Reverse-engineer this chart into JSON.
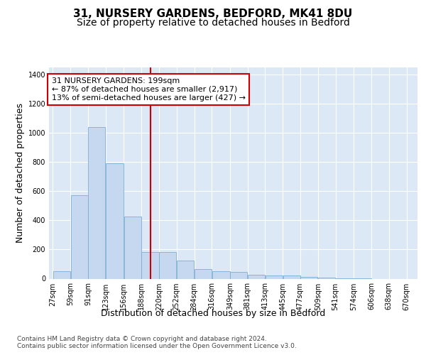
{
  "title_line1": "31, NURSERY GARDENS, BEDFORD, MK41 8DU",
  "title_line2": "Size of property relative to detached houses in Bedford",
  "xlabel": "Distribution of detached houses by size in Bedford",
  "ylabel": "Number of detached properties",
  "footer_line1": "Contains HM Land Registry data © Crown copyright and database right 2024.",
  "footer_line2": "Contains public sector information licensed under the Open Government Licence v3.0.",
  "annotation_line1": "31 NURSERY GARDENS: 199sqm",
  "annotation_line2": "← 87% of detached houses are smaller (2,917)",
  "annotation_line3": "13% of semi-detached houses are larger (427) →",
  "property_size": 199,
  "bar_left_edges": [
    27,
    59,
    91,
    123,
    156,
    188,
    220,
    252,
    284,
    316,
    349,
    381,
    413,
    445,
    477,
    509,
    541,
    574,
    606,
    638
  ],
  "bar_widths": [
    32,
    32,
    32,
    33,
    32,
    32,
    32,
    32,
    32,
    33,
    32,
    32,
    32,
    32,
    32,
    32,
    33,
    32,
    32,
    32
  ],
  "bar_heights": [
    50,
    575,
    1040,
    790,
    425,
    185,
    182,
    125,
    65,
    50,
    47,
    28,
    22,
    22,
    10,
    6,
    3,
    1,
    0,
    0
  ],
  "bar_color": "#c5d8f0",
  "bar_edge_color": "#7aafd4",
  "vline_color": "#cc0000",
  "vline_x": 204,
  "annotation_box_color": "#cc0000",
  "ylim": [
    0,
    1450
  ],
  "yticks": [
    0,
    200,
    400,
    600,
    800,
    1000,
    1200,
    1400
  ],
  "xtick_labels": [
    "27sqm",
    "59sqm",
    "91sqm",
    "123sqm",
    "156sqm",
    "188sqm",
    "220sqm",
    "252sqm",
    "284sqm",
    "316sqm",
    "349sqm",
    "381sqm",
    "413sqm",
    "445sqm",
    "477sqm",
    "509sqm",
    "541sqm",
    "574sqm",
    "606sqm",
    "638sqm",
    "670sqm"
  ],
  "xtick_positions": [
    27,
    59,
    91,
    123,
    156,
    188,
    220,
    252,
    284,
    316,
    349,
    381,
    413,
    445,
    477,
    509,
    541,
    574,
    606,
    638,
    670
  ],
  "fig_bg_color": "#ffffff",
  "plot_bg_color": "#dce8f5",
  "grid_color": "#ffffff",
  "title_fontsize": 11,
  "subtitle_fontsize": 10,
  "axis_label_fontsize": 9,
  "tick_fontsize": 7,
  "annotation_fontsize": 8,
  "footer_fontsize": 6.5
}
